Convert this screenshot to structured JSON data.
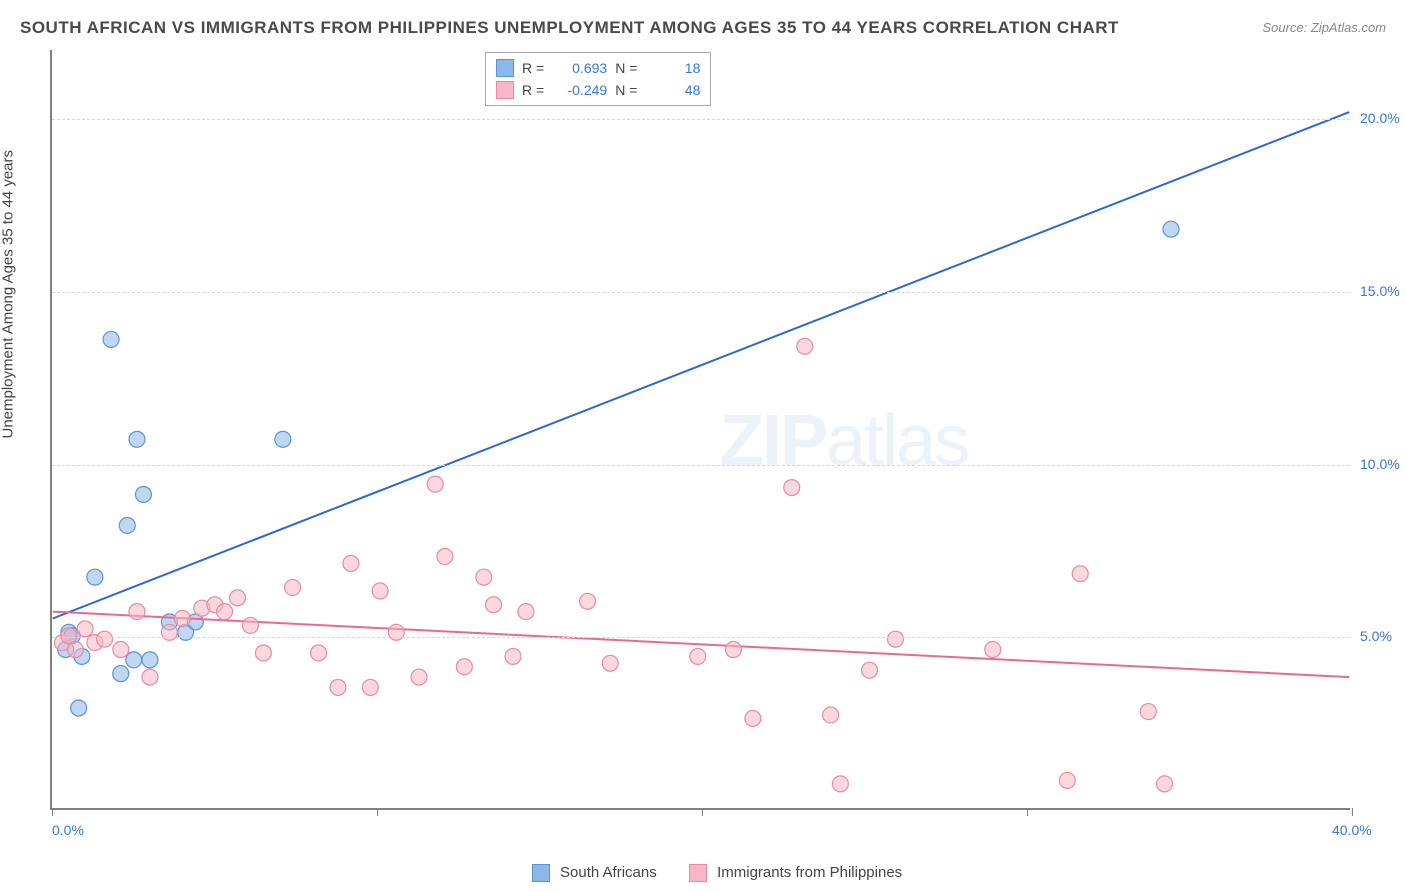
{
  "title": "SOUTH AFRICAN VS IMMIGRANTS FROM PHILIPPINES UNEMPLOYMENT AMONG AGES 35 TO 44 YEARS CORRELATION CHART",
  "source": "Source: ZipAtlas.com",
  "ylabel": "Unemployment Among Ages 35 to 44 years",
  "watermark": "ZIPatlas",
  "chart": {
    "type": "scatter",
    "background_color": "#ffffff",
    "grid_color": "#d8d8d8",
    "axis_color": "#808080",
    "xlim": [
      0,
      40
    ],
    "ylim": [
      0,
      22
    ],
    "x_ticks": [
      0,
      10,
      20,
      30,
      40
    ],
    "x_tick_labels": [
      "0.0%",
      "",
      "",
      "",
      "40.0%"
    ],
    "y_gridlines": [
      5,
      10,
      15,
      20
    ],
    "y_tick_labels": [
      "5.0%",
      "10.0%",
      "15.0%",
      "20.0%"
    ],
    "axis_label_color": "#3878d8",
    "axis_label_fontsize": 14,
    "marker_radius": 8,
    "marker_opacity": 0.55,
    "line_width": 2,
    "series": [
      {
        "name": "South Africans",
        "color": "#8db7e8",
        "stroke": "#5a93d6",
        "line_color": "#2a6ad0",
        "R": "0.693",
        "N": "18",
        "trend": {
          "x1": 0,
          "y1": 5.5,
          "x2": 40,
          "y2": 20.2
        },
        "points": [
          [
            0.4,
            4.6
          ],
          [
            0.5,
            5.1
          ],
          [
            0.6,
            5.0
          ],
          [
            0.8,
            2.9
          ],
          [
            0.9,
            4.4
          ],
          [
            1.3,
            6.7
          ],
          [
            1.8,
            13.6
          ],
          [
            2.1,
            3.9
          ],
          [
            2.3,
            8.2
          ],
          [
            2.5,
            4.3
          ],
          [
            2.6,
            10.7
          ],
          [
            2.8,
            9.1
          ],
          [
            3.0,
            4.3
          ],
          [
            3.6,
            5.4
          ],
          [
            4.1,
            5.1
          ],
          [
            4.4,
            5.4
          ],
          [
            7.1,
            10.7
          ],
          [
            34.5,
            16.8
          ]
        ]
      },
      {
        "name": "Immigrants from Philippines",
        "color": "#f7b7c6",
        "stroke": "#e88ba3",
        "line_color": "#e86b8f",
        "R": "-0.249",
        "N": "48",
        "trend": {
          "x1": 0,
          "y1": 5.7,
          "x2": 40,
          "y2": 3.8
        },
        "points": [
          [
            0.3,
            4.8
          ],
          [
            0.5,
            5.0
          ],
          [
            0.7,
            4.6
          ],
          [
            1.0,
            5.2
          ],
          [
            1.3,
            4.8
          ],
          [
            1.6,
            4.9
          ],
          [
            2.1,
            4.6
          ],
          [
            2.6,
            5.7
          ],
          [
            3.0,
            3.8
          ],
          [
            3.6,
            5.1
          ],
          [
            4.0,
            5.5
          ],
          [
            4.6,
            5.8
          ],
          [
            5.0,
            5.9
          ],
          [
            5.3,
            5.7
          ],
          [
            5.7,
            6.1
          ],
          [
            6.1,
            5.3
          ],
          [
            6.5,
            4.5
          ],
          [
            7.4,
            6.4
          ],
          [
            8.2,
            4.5
          ],
          [
            8.8,
            3.5
          ],
          [
            9.2,
            7.1
          ],
          [
            9.8,
            3.5
          ],
          [
            10.1,
            6.3
          ],
          [
            10.6,
            5.1
          ],
          [
            11.3,
            3.8
          ],
          [
            11.8,
            9.4
          ],
          [
            12.1,
            7.3
          ],
          [
            12.7,
            4.1
          ],
          [
            13.3,
            6.7
          ],
          [
            13.6,
            5.9
          ],
          [
            14.2,
            4.4
          ],
          [
            14.6,
            5.7
          ],
          [
            16.5,
            6.0
          ],
          [
            17.2,
            4.2
          ],
          [
            19.9,
            4.4
          ],
          [
            21.0,
            4.6
          ],
          [
            21.6,
            2.6
          ],
          [
            22.8,
            9.3
          ],
          [
            23.2,
            13.4
          ],
          [
            24.0,
            2.7
          ],
          [
            24.3,
            0.7
          ],
          [
            25.2,
            4.0
          ],
          [
            26.0,
            4.9
          ],
          [
            29.0,
            4.6
          ],
          [
            31.3,
            0.8
          ],
          [
            31.7,
            6.8
          ],
          [
            33.8,
            2.8
          ],
          [
            34.3,
            0.7
          ]
        ]
      }
    ]
  },
  "legend_top": {
    "rows": [
      {
        "swatch_fill": "#8db7e8",
        "swatch_stroke": "#5a93d6",
        "R_label": "R =",
        "R": "0.693",
        "N_label": "N =",
        "N": "18"
      },
      {
        "swatch_fill": "#f7b7c6",
        "swatch_stroke": "#e88ba3",
        "R_label": "R =",
        "R": "-0.249",
        "N_label": "N =",
        "N": "48"
      }
    ]
  },
  "legend_bottom": [
    {
      "swatch_fill": "#8db7e8",
      "swatch_stroke": "#5a93d6",
      "label": "South Africans"
    },
    {
      "swatch_fill": "#f7b7c6",
      "swatch_stroke": "#e88ba3",
      "label": "Immigrants from Philippines"
    }
  ]
}
